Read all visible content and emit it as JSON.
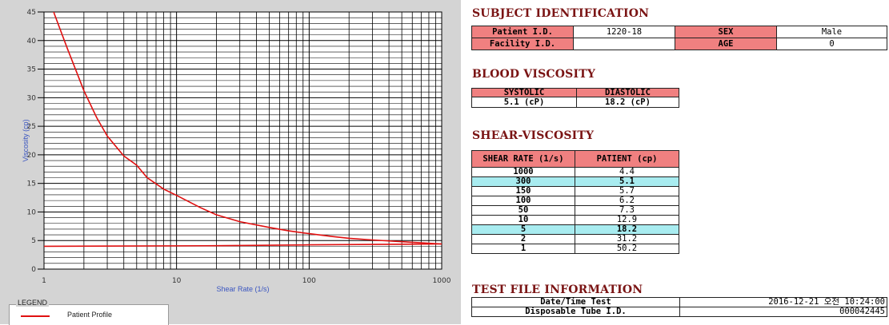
{
  "chart_data": {
    "type": "line",
    "xlabel": "Shear Rate (1/s)",
    "ylabel": "Viscosity (cp)",
    "xscale": "log",
    "xlim": [
      1,
      1000
    ],
    "ylim": [
      0,
      45
    ],
    "xticks": [
      "1",
      "10",
      "100",
      "1000"
    ],
    "yticks": [
      "0",
      "5",
      "10",
      "15",
      "20",
      "25",
      "30",
      "35",
      "40",
      "45"
    ],
    "grid": true,
    "legend_title": "LEGEND",
    "legend_position": "bottom-left",
    "series": [
      {
        "name": "Patient Profile",
        "color": "#e01010",
        "x": [
          1,
          1.2,
          1.5,
          2,
          2.5,
          3,
          4,
          5,
          6,
          8,
          10,
          15,
          20,
          30,
          50,
          70,
          100,
          150,
          200,
          300,
          500,
          700,
          1000
        ],
        "y": [
          50.2,
          44.6,
          38.6,
          31.2,
          26.5,
          23.3,
          19.8,
          18.2,
          16.0,
          14.0,
          12.9,
          10.8,
          9.5,
          8.3,
          7.3,
          6.7,
          6.2,
          5.7,
          5.4,
          5.1,
          4.8,
          4.6,
          4.4
        ]
      },
      {
        "name": "",
        "color": "#e01010",
        "x": [
          1,
          20,
          100,
          1000
        ],
        "y": [
          4.0,
          4.1,
          4.25,
          4.4
        ]
      }
    ]
  },
  "subject": {
    "title": "SUBJECT IDENTIFICATION",
    "patient_id_label": "Patient I.D.",
    "patient_id": "1220-18",
    "sex_label": "SEX",
    "sex": "Male",
    "facility_label": "Facility I.D.",
    "facility": "",
    "age_label": "AGE",
    "age": "0"
  },
  "blood": {
    "title": "BLOOD VISCOSITY",
    "systolic_label": "SYSTOLIC",
    "diastolic_label": "DIASTOLIC",
    "systolic": "5.1 (cP)",
    "diastolic": "18.2 (cP)"
  },
  "shear": {
    "title": "SHEAR-VISCOSITY",
    "col_rate": "SHEAR RATE (1/s)",
    "col_patient": "PATIENT (cp)",
    "rows": [
      {
        "rate": "1000",
        "value": "4.4"
      },
      {
        "rate": "300",
        "value": "5.1"
      },
      {
        "rate": "150",
        "value": "5.7"
      },
      {
        "rate": "100",
        "value": "6.2"
      },
      {
        "rate": "50",
        "value": "7.3"
      },
      {
        "rate": "10",
        "value": "12.9"
      },
      {
        "rate": "5",
        "value": "18.2"
      },
      {
        "rate": "2",
        "value": "31.2"
      },
      {
        "rate": "1",
        "value": "50.2"
      }
    ]
  },
  "testfile": {
    "title": "TEST FILE INFORMATION",
    "datetime_label": "Date/Time Test",
    "datetime": "2016-12-21  오전 10:24:00",
    "tube_label": "Disposable Tube I.D.",
    "tube": "000042445"
  }
}
